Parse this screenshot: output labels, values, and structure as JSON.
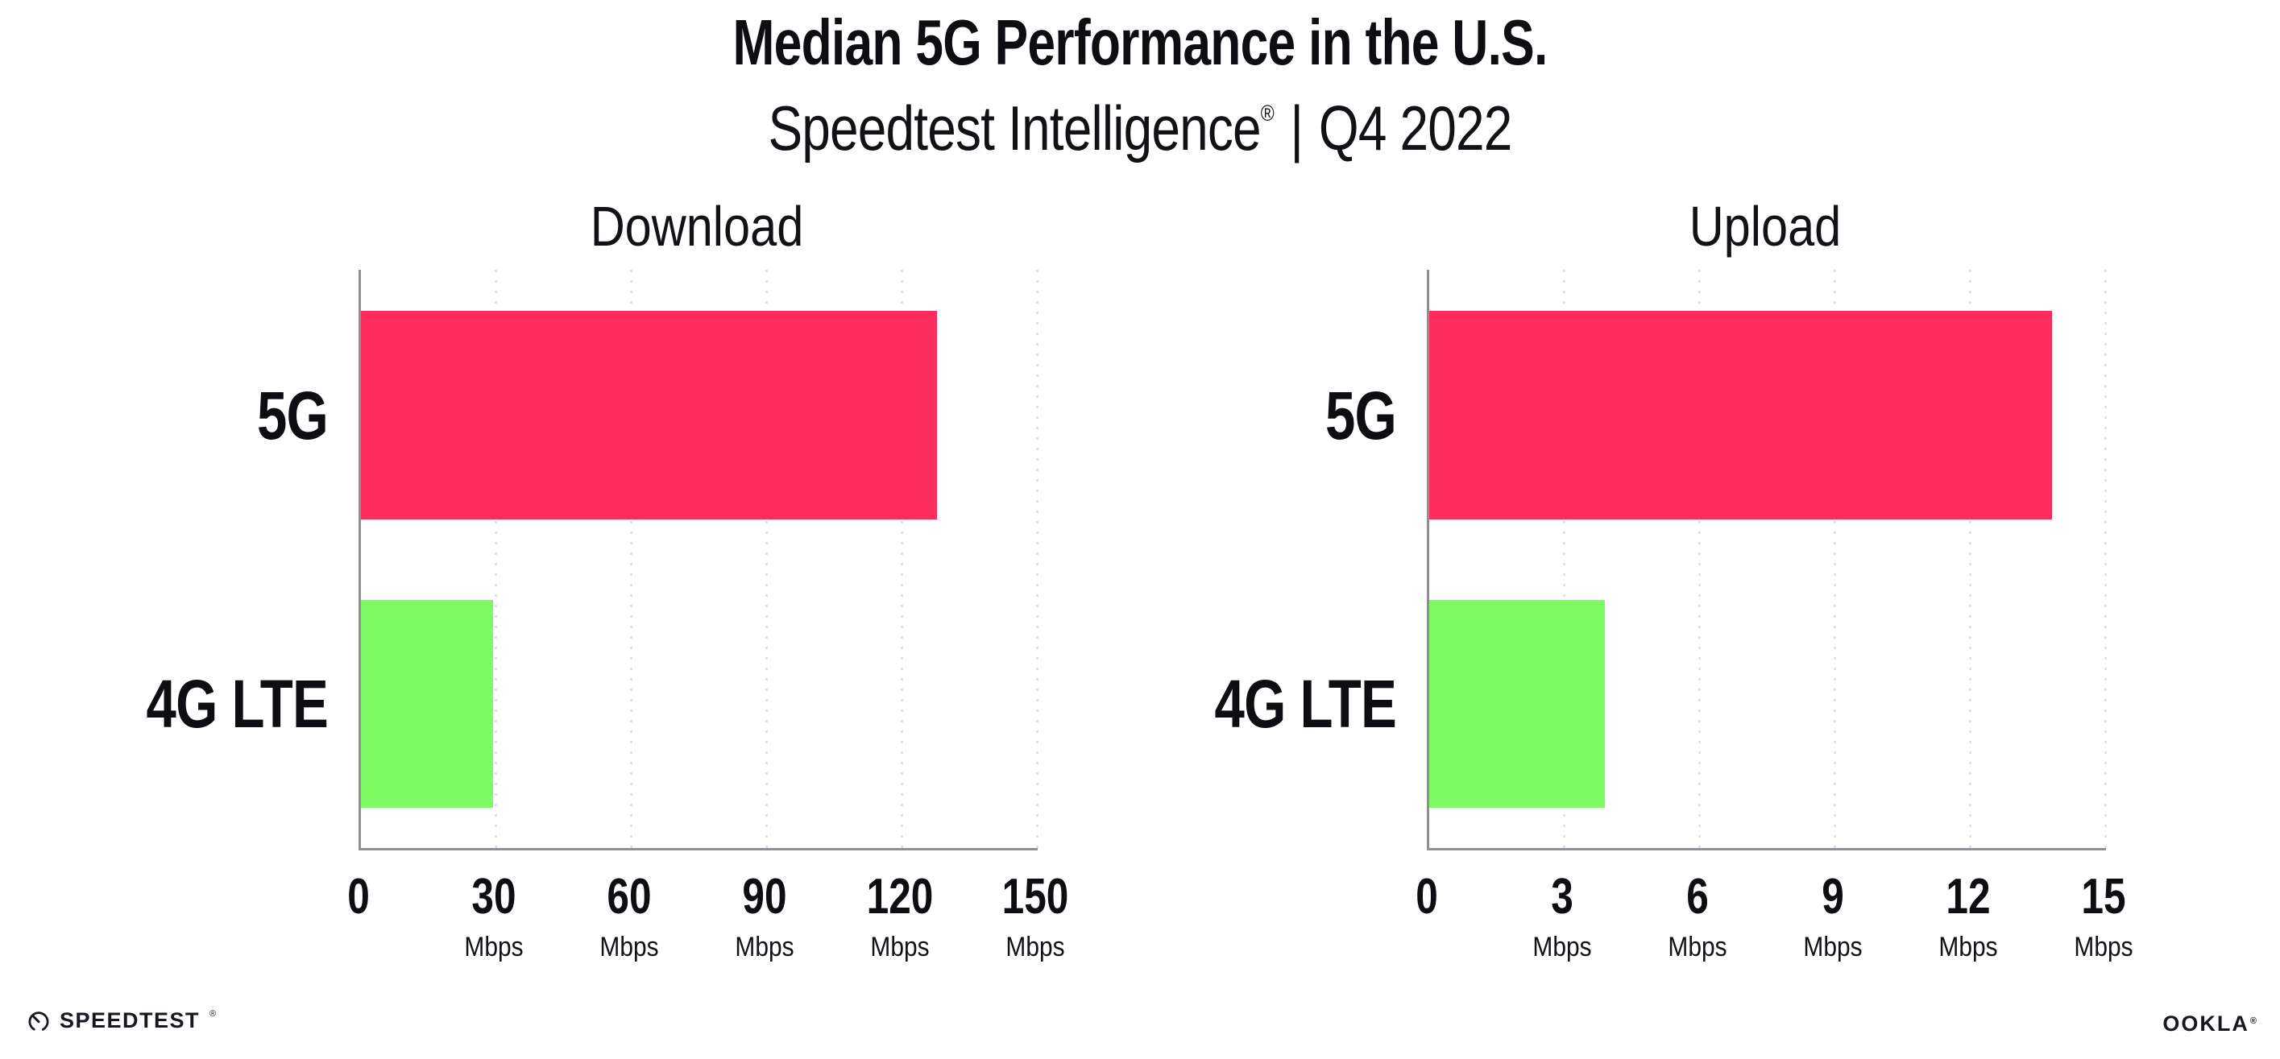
{
  "header": {
    "title": "Median 5G Performance in the U.S.",
    "subtitle_brand": "Speedtest Intelligence",
    "subtitle_reg": "®",
    "subtitle_separator": "|",
    "subtitle_period": "Q4 2022"
  },
  "chart_data": [
    {
      "type": "bar",
      "orientation": "horizontal",
      "title": "Download",
      "categories": [
        "5G",
        "4G LTE"
      ],
      "values": [
        127.6,
        29.2
      ],
      "unit": "Mbps",
      "xlim": [
        0,
        150
      ],
      "xticks": [
        0,
        30,
        60,
        90,
        120,
        150
      ],
      "grid": "vertical-dotted",
      "legend": "none",
      "bar_colors": [
        "#fc2d5c",
        "#7dfa61"
      ]
    },
    {
      "type": "bar",
      "orientation": "horizontal",
      "title": "Upload",
      "categories": [
        "5G",
        "4G LTE"
      ],
      "values": [
        13.8,
        3.9
      ],
      "unit": "Mbps",
      "xlim": [
        0,
        15
      ],
      "xticks": [
        0,
        3,
        6,
        9,
        12,
        15
      ],
      "grid": "vertical-dotted",
      "legend": "none",
      "bar_colors": [
        "#fc2d5c",
        "#7dfa61"
      ]
    }
  ],
  "footer": {
    "speedtest_label": "SPEEDTEST",
    "speedtest_reg": "®",
    "ookla_label": "OOKLA",
    "ookla_reg": "®"
  },
  "colors": {
    "bar_5g": "#fc2d5c",
    "bar_4g_lte": "#7dfa61",
    "axis": "#8f8f97",
    "gridline": "#dfe0ea",
    "text": "#0d0d12"
  }
}
